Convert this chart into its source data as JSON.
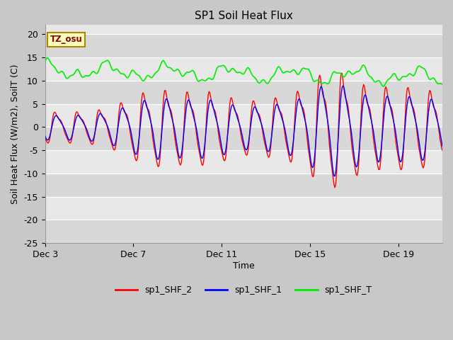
{
  "title": "SP1 Soil Heat Flux",
  "xlabel": "Time",
  "ylabel": "Soil Heat Flux (W/m2), SoilT (C)",
  "ylim": [
    -25,
    22
  ],
  "yticks": [
    -25,
    -20,
    -15,
    -10,
    -5,
    0,
    5,
    10,
    15,
    20
  ],
  "xtick_labels": [
    "Dec 3",
    "Dec 7",
    "Dec 11",
    "Dec 15",
    "Dec 19"
  ],
  "xtick_pos": [
    0,
    4,
    8,
    12,
    16
  ],
  "xlim": [
    0,
    18
  ],
  "fig_bg_color": "#c8c8c8",
  "plot_bg_color": "#e8e8e8",
  "line_colors": {
    "shf2": "#ff0000",
    "shf1": "#0000ff",
    "shft": "#00ee00"
  },
  "legend_labels": [
    "sp1_SHF_2",
    "sp1_SHF_1",
    "sp1_SHF_T"
  ],
  "tz_label": "TZ_osu",
  "grid_color": "#ffffff",
  "band_colors": [
    "#d8d8d8",
    "#e8e8e8"
  ],
  "title_fontsize": 11,
  "label_fontsize": 9,
  "tick_fontsize": 9
}
